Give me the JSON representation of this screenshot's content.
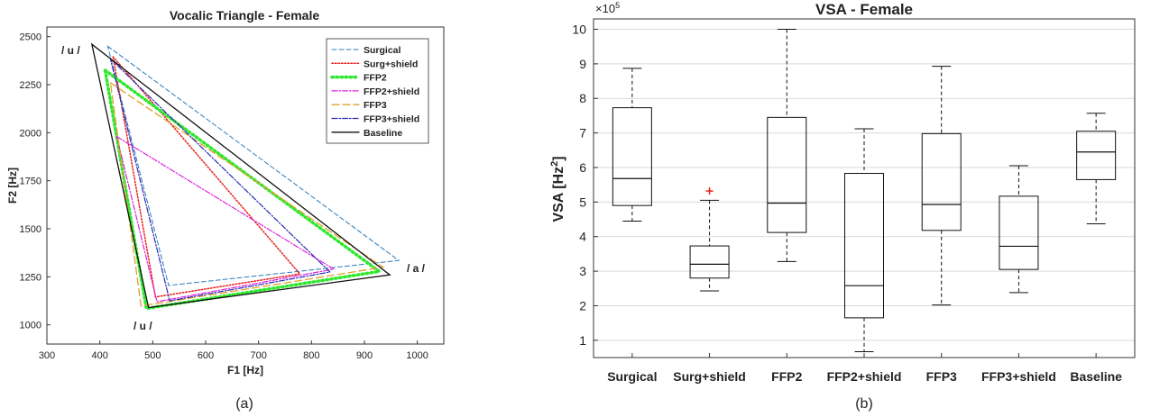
{
  "chart_data": [
    {
      "type": "line",
      "title": "Vocalic Triangle - Female",
      "xlabel": "F1 [Hz]",
      "ylabel": "F2 [Hz]",
      "xlim": [
        300,
        1050
      ],
      "ylim": [
        900,
        2550
      ],
      "xticks": [
        "300",
        "400",
        "500",
        "600",
        "700",
        "800",
        "900",
        "1000"
      ],
      "yticks": [
        "1000",
        "1250",
        "1500",
        "1750",
        "2000",
        "2250",
        "2500"
      ],
      "grid": false,
      "legend_position": "top-right",
      "vowel_labels": {
        "u_top": "/ u /",
        "a": "/ a /",
        "u_bottom": "/ u /"
      },
      "caption": "(a)",
      "series": [
        {
          "name": "Surgical",
          "color": "#2b7bba",
          "dash": "dashed",
          "points": [
            [
              415,
              2450
            ],
            [
              965,
              1335
            ],
            [
              530,
              1205
            ]
          ]
        },
        {
          "name": "Surg+shield",
          "color": "#e8201a",
          "dash": "dotted",
          "points": [
            [
              425,
              2395
            ],
            [
              778,
              1265
            ],
            [
              505,
              1145
            ]
          ]
        },
        {
          "name": "FFP2",
          "color": "#2ee82e",
          "dash": "dotted-thick",
          "points": [
            [
              410,
              2325
            ],
            [
              928,
              1278
            ],
            [
              488,
              1085
            ]
          ]
        },
        {
          "name": "FFP2+shield",
          "color": "#e020e0",
          "dash": "dashdot",
          "points": [
            [
              432,
              1980
            ],
            [
              842,
              1290
            ],
            [
              508,
              1120
            ]
          ]
        },
        {
          "name": "FFP3",
          "color": "#e0a02a",
          "dash": "dashed-long",
          "points": [
            [
              420,
              2260
            ],
            [
              935,
              1300
            ],
            [
              478,
              1098
            ]
          ]
        },
        {
          "name": "FFP3+shield",
          "color": "#2a2ab8",
          "dash": "dashdot",
          "points": [
            [
              420,
              2385
            ],
            [
              835,
              1275
            ],
            [
              532,
              1125
            ]
          ]
        },
        {
          "name": "Baseline",
          "color": "#111111",
          "dash": "solid",
          "points": [
            [
              385,
              2460
            ],
            [
              948,
              1260
            ],
            [
              492,
              1090
            ]
          ]
        }
      ]
    },
    {
      "type": "box",
      "title": "VSA - Female",
      "ylabel": "VSA [Hz",
      "ylabel_sup": "2",
      "ylabel_end": "]",
      "scale_label": "×10",
      "scale_exp": "5",
      "ylim": [
        0.5,
        10.3
      ],
      "yticks": [
        "1",
        "2",
        "3",
        "4",
        "5",
        "6",
        "7",
        "8",
        "9",
        "10"
      ],
      "grid": true,
      "caption": "(b)",
      "categories": [
        "Surgical",
        "Surg+shield",
        "FFP2",
        "FFP2+shield",
        "FFP3",
        "FFP3+shield",
        "Baseline"
      ],
      "boxes": [
        {
          "min": 4.45,
          "q1": 4.9,
          "median": 5.68,
          "q3": 7.73,
          "max": 8.87,
          "outliers": []
        },
        {
          "min": 2.43,
          "q1": 2.8,
          "median": 3.2,
          "q3": 3.73,
          "max": 5.05,
          "outliers": [
            5.32
          ]
        },
        {
          "min": 3.28,
          "q1": 4.12,
          "median": 4.97,
          "q3": 7.45,
          "max": 10.0,
          "outliers": []
        },
        {
          "min": 0.67,
          "q1": 1.65,
          "median": 2.58,
          "q3": 5.83,
          "max": 7.12,
          "outliers": []
        },
        {
          "min": 2.02,
          "q1": 4.18,
          "median": 4.93,
          "q3": 6.98,
          "max": 8.93,
          "outliers": []
        },
        {
          "min": 2.38,
          "q1": 3.05,
          "median": 3.72,
          "q3": 5.17,
          "max": 6.05,
          "outliers": []
        },
        {
          "min": 4.37,
          "q1": 5.65,
          "median": 6.45,
          "q3": 7.05,
          "max": 7.57,
          "outliers": []
        }
      ]
    }
  ]
}
